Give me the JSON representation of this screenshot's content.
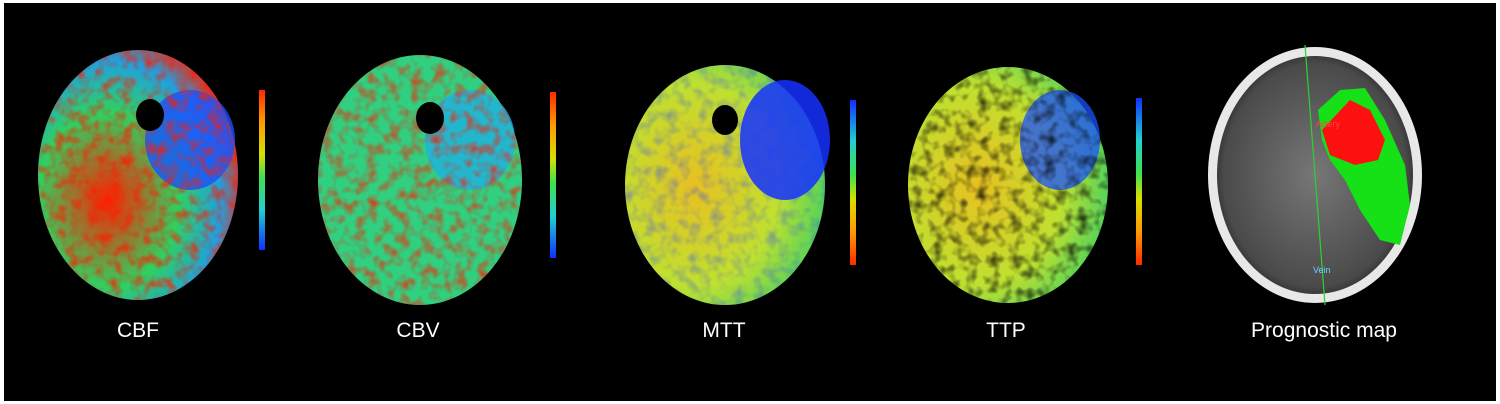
{
  "panels": [
    {
      "label": "CBF"
    },
    {
      "label": "CBV"
    },
    {
      "label": "MTT"
    },
    {
      "label": "TTP"
    },
    {
      "label": "Prognostic map",
      "annotations": [
        "Artery",
        "Vein"
      ]
    }
  ]
}
